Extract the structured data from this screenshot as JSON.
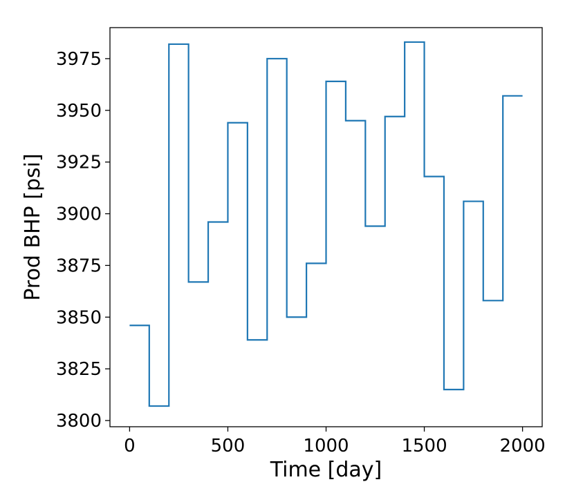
{
  "chart_data": {
    "type": "line",
    "step": "post",
    "title": "",
    "xlabel": "Time [day]",
    "ylabel": "Prod BHP [psi]",
    "xlim": [
      -100,
      2100
    ],
    "ylim": [
      3797,
      3990
    ],
    "xticks": [
      0,
      500,
      1000,
      1500,
      2000
    ],
    "xtick_labels": [
      "0",
      "500",
      "1000",
      "1500",
      "2000"
    ],
    "yticks": [
      3800,
      3825,
      3850,
      3875,
      3900,
      3925,
      3950,
      3975
    ],
    "ytick_labels": [
      "3800",
      "3825",
      "3850",
      "3875",
      "3900",
      "3925",
      "3950",
      "3975"
    ],
    "grid": false,
    "series": [
      {
        "color": "#1f77b4",
        "x": [
          0,
          100,
          200,
          300,
          400,
          500,
          600,
          700,
          800,
          900,
          1000,
          1100,
          1200,
          1300,
          1400,
          1500,
          1600,
          1700,
          1800,
          1900,
          2000
        ],
        "y": [
          3846,
          3807,
          3982,
          3867,
          3896,
          3944,
          3839,
          3975,
          3850,
          3876,
          3964,
          3945,
          3894,
          3947,
          3983,
          3918,
          3815,
          3906,
          3858,
          3957,
          3957
        ]
      }
    ]
  }
}
